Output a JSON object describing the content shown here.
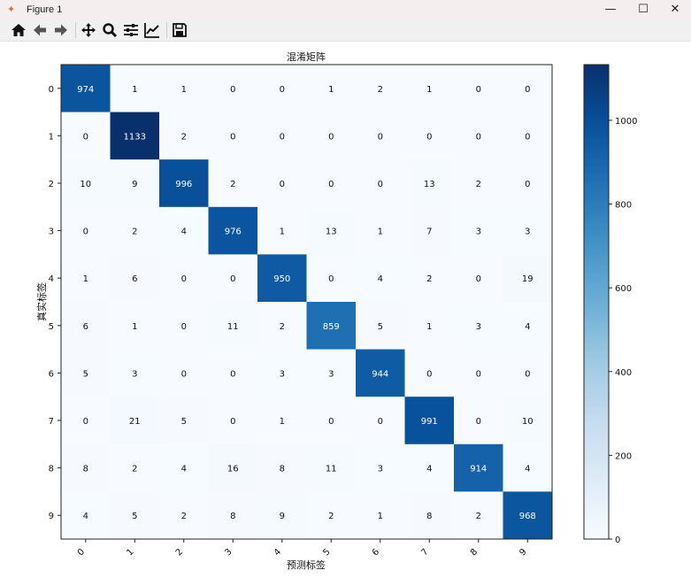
{
  "window": {
    "title": "Figure 1",
    "controls": [
      "minimize",
      "maximize",
      "close"
    ]
  },
  "toolbar": {
    "icons": [
      "home-icon",
      "back-icon",
      "forward-icon",
      "pan-icon",
      "zoom-icon",
      "configure-subplots-icon",
      "edit-axis-icon",
      "save-icon"
    ]
  },
  "chart_data": {
    "type": "heatmap",
    "title": "混淆矩阵",
    "xlabel": "预测标签",
    "ylabel": "真实标签",
    "x_ticks": [
      "0",
      "1",
      "2",
      "3",
      "4",
      "5",
      "6",
      "7",
      "8",
      "9"
    ],
    "y_ticks": [
      "0",
      "1",
      "2",
      "3",
      "4",
      "5",
      "6",
      "7",
      "8",
      "9"
    ],
    "colormap": "Blues",
    "colorbar": {
      "range": [
        0,
        1133
      ],
      "ticks": [
        0,
        200,
        400,
        600,
        800,
        1000
      ]
    },
    "matrix": [
      [
        974,
        1,
        1,
        0,
        0,
        1,
        2,
        1,
        0,
        0
      ],
      [
        0,
        1133,
        2,
        0,
        0,
        0,
        0,
        0,
        0,
        0
      ],
      [
        10,
        9,
        996,
        2,
        0,
        0,
        0,
        13,
        2,
        0
      ],
      [
        0,
        2,
        4,
        976,
        1,
        13,
        1,
        7,
        3,
        3
      ],
      [
        1,
        6,
        0,
        0,
        950,
        0,
        4,
        2,
        0,
        19
      ],
      [
        6,
        1,
        0,
        11,
        2,
        859,
        5,
        1,
        3,
        4
      ],
      [
        5,
        3,
        0,
        0,
        3,
        3,
        944,
        0,
        0,
        0
      ],
      [
        0,
        21,
        5,
        0,
        1,
        0,
        0,
        991,
        0,
        10
      ],
      [
        8,
        2,
        4,
        16,
        8,
        11,
        3,
        4,
        914,
        4
      ],
      [
        4,
        5,
        2,
        8,
        9,
        2,
        1,
        8,
        2,
        968
      ]
    ]
  }
}
